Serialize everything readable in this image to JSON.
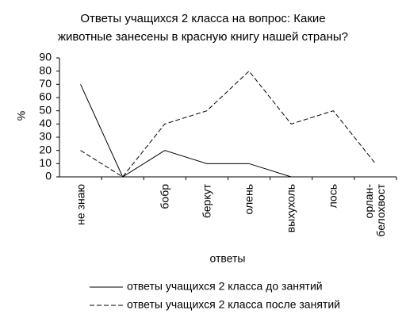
{
  "chart_data": {
    "type": "line",
    "title": "Ответы учащихся 2 класса на вопрос: Какие\nживотные занесены в красную книгу нашей страны?",
    "x_label": "ответы",
    "y_label": "%",
    "categories": [
      "не знаю",
      null,
      "бобр",
      "беркут",
      "олень",
      "выхухоль",
      "лось",
      "орлан-\nбелохвост"
    ],
    "series": [
      {
        "name": "ответы учащихся 2 класса до занятий",
        "color": "#000000",
        "dash": false,
        "values": [
          70,
          0,
          20,
          10,
          10,
          0,
          null,
          null
        ]
      },
      {
        "name": "ответы учащихся 2 класса после занятий",
        "color": "#000000",
        "dash": true,
        "values": [
          20,
          0,
          40,
          50,
          80,
          40,
          50,
          10
        ]
      }
    ],
    "ylim": [
      0,
      90
    ],
    "yticks": [
      0,
      10,
      20,
      30,
      40,
      50,
      60,
      70,
      80,
      90
    ],
    "grid": false,
    "legend": "bottom"
  }
}
